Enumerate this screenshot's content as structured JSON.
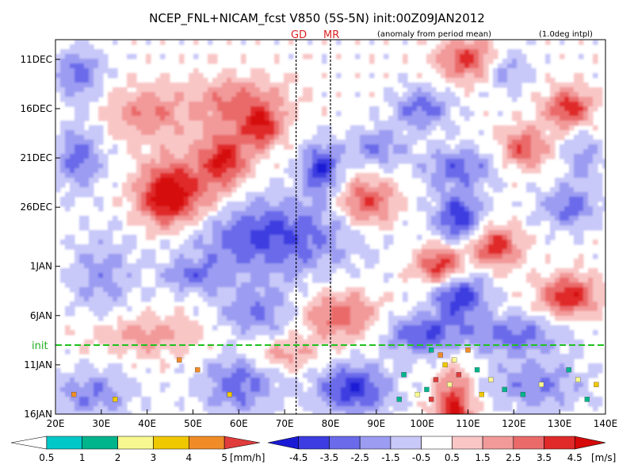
{
  "header": {
    "title": "NCEP_FNL+NICAM_fcst V850 (5S-5N) init:00Z09JAN2012",
    "note_anomaly": "(anomaly from period mean)",
    "note_interp": "(1.0deg intpl)",
    "marker_gd": "GD",
    "marker_mr": "MR",
    "init_label": "init"
  },
  "chart_data": {
    "type": "heatmap",
    "title": "NCEP_FNL+NICAM_fcst V850 (5S-5N) init:00Z09JAN2012",
    "x_ticks": [
      "20E",
      "30E",
      "40E",
      "50E",
      "60E",
      "70E",
      "80E",
      "90E",
      "100E",
      "110E",
      "120E",
      "130E",
      "140E"
    ],
    "xlim": [
      20,
      140
    ],
    "y_ticks": [
      "11DEC",
      "16DEC",
      "21DEC",
      "26DEC",
      "1JAN",
      "6JAN",
      "11JAN",
      "16JAN"
    ],
    "y_tick_days": [
      2,
      7,
      12,
      17,
      23,
      28,
      33,
      38
    ],
    "ylim_days": [
      0,
      38
    ],
    "init_day": 31,
    "markers": [
      {
        "label": "GD",
        "lon": 72.5
      },
      {
        "label": "MR",
        "lon": 80
      }
    ],
    "v850_colorbar": {
      "unit": "[m/s]",
      "labels": [
        "-4.5",
        "-3.5",
        "-2.5",
        "-1.5",
        "-0.5",
        "0.5",
        "1.5",
        "2.5",
        "3.5",
        "4.5"
      ],
      "colors": [
        "#1a1ad6",
        "#3c3ce0",
        "#6a6aea",
        "#9c9cf2",
        "#c8c8f9",
        "#ffffff",
        "#f9c6c6",
        "#f29a9a",
        "#ea6a6a",
        "#e02a2a",
        "#d60a0a"
      ]
    },
    "rain_colorbar": {
      "unit": "[mm/h]",
      "labels": [
        "0.5",
        "1",
        "2",
        "3",
        "4",
        "5"
      ],
      "colors": [
        "#ffffff",
        "#00c8c8",
        "#00b48c",
        "#f8f890",
        "#f0c800",
        "#f08c28",
        "#e03c3c"
      ]
    },
    "anomaly_blobs": [
      {
        "lon": 25,
        "day": 3.5,
        "rlon": 5,
        "rday": 2.5,
        "v": -3
      },
      {
        "lon": 40,
        "day": 7.5,
        "rlon": 8,
        "rday": 2.5,
        "v": 2.5
      },
      {
        "lon": 60,
        "day": 6.5,
        "rlon": 10,
        "rday": 2.5,
        "v": 3
      },
      {
        "lon": 65,
        "day": 9,
        "rlon": 4,
        "rday": 2,
        "v": 4
      },
      {
        "lon": 25,
        "day": 12,
        "rlon": 5,
        "rday": 3,
        "v": -3
      },
      {
        "lon": 57,
        "day": 12,
        "rlon": 5,
        "rday": 2.5,
        "v": 4.2
      },
      {
        "lon": 44,
        "day": 16,
        "rlon": 6,
        "rday": 3,
        "v": 4.5
      },
      {
        "lon": 50,
        "day": 15.5,
        "rlon": 9,
        "rday": 4,
        "v": 2.5
      },
      {
        "lon": 78,
        "day": 13,
        "rlon": 4,
        "rday": 2.5,
        "v": -4.2
      },
      {
        "lon": 90,
        "day": 11,
        "rlon": 6,
        "rday": 2,
        "v": -2.5
      },
      {
        "lon": 66,
        "day": 20,
        "rlon": 18,
        "rday": 4,
        "v": -3.8
      },
      {
        "lon": 88,
        "day": 16.5,
        "rlon": 6,
        "rday": 2.5,
        "v": 3.8
      },
      {
        "lon": 50,
        "day": 24,
        "rlon": 6,
        "rday": 1.5,
        "v": -2.5
      },
      {
        "lon": 30,
        "day": 24,
        "rlon": 7,
        "rday": 4,
        "v": -2
      },
      {
        "lon": 82,
        "day": 28,
        "rlon": 8,
        "rday": 2.5,
        "v": 3
      },
      {
        "lon": 64,
        "day": 27.5,
        "rlon": 8,
        "rday": 2.5,
        "v": -2.5
      },
      {
        "lon": 40,
        "day": 30,
        "rlon": 12,
        "rday": 2,
        "v": 2
      },
      {
        "lon": 70,
        "day": 32,
        "rlon": 7,
        "rday": 1.5,
        "v": 2
      },
      {
        "lon": 85,
        "day": 35.5,
        "rlon": 8,
        "rday": 2.5,
        "v": -4.2
      },
      {
        "lon": 60,
        "day": 35,
        "rlon": 8,
        "rday": 3,
        "v": -3
      },
      {
        "lon": 28,
        "day": 36,
        "rlon": 8,
        "rday": 2.5,
        "v": -2.5
      },
      {
        "lon": 107,
        "day": 38,
        "rlon": 4,
        "rday": 4,
        "v": 4.8
      },
      {
        "lon": 110,
        "day": 2,
        "rlon": 6,
        "rday": 2,
        "v": 4
      },
      {
        "lon": 118,
        "day": 3,
        "rlon": 5,
        "rday": 2,
        "v": -2
      },
      {
        "lon": 132,
        "day": 7,
        "rlon": 5,
        "rday": 2,
        "v": 4.2
      },
      {
        "lon": 100,
        "day": 7,
        "rlon": 6,
        "rday": 2,
        "v": -3
      },
      {
        "lon": 122,
        "day": 11,
        "rlon": 5,
        "rday": 2,
        "v": 3.5
      },
      {
        "lon": 108,
        "day": 13,
        "rlon": 8,
        "rday": 2,
        "v": -3
      },
      {
        "lon": 108,
        "day": 18,
        "rlon": 5,
        "rday": 2.5,
        "v": -4.2
      },
      {
        "lon": 132,
        "day": 17,
        "rlon": 6,
        "rday": 2,
        "v": -3
      },
      {
        "lon": 116,
        "day": 21,
        "rlon": 5,
        "rday": 2,
        "v": 4.2
      },
      {
        "lon": 104,
        "day": 23,
        "rlon": 5,
        "rday": 2,
        "v": 4.5
      },
      {
        "lon": 108,
        "day": 26,
        "rlon": 6,
        "rday": 2.5,
        "v": -4.2
      },
      {
        "lon": 132,
        "day": 26,
        "rlon": 6,
        "rday": 2,
        "v": 4.5
      },
      {
        "lon": 120,
        "day": 30,
        "rlon": 10,
        "rday": 2,
        "v": -3
      },
      {
        "lon": 100,
        "day": 30,
        "rlon": 8,
        "rday": 2,
        "v": -3.5
      },
      {
        "lon": 125,
        "day": 35,
        "rlon": 10,
        "rday": 2.5,
        "v": -2.5
      },
      {
        "lon": 135,
        "day": 12,
        "rlon": 4,
        "rday": 3,
        "v": -2
      }
    ],
    "rain_cells": [
      {
        "lon": 102,
        "day": 31.5,
        "v": 1
      },
      {
        "lon": 104,
        "day": 32,
        "v": 4
      },
      {
        "lon": 105,
        "day": 33,
        "v": 3
      },
      {
        "lon": 107,
        "day": 32.5,
        "v": 2
      },
      {
        "lon": 103,
        "day": 34.5,
        "v": 5
      },
      {
        "lon": 106,
        "day": 35,
        "v": 2
      },
      {
        "lon": 101,
        "day": 35.5,
        "v": 1
      },
      {
        "lon": 108,
        "day": 34,
        "v": 5
      },
      {
        "lon": 110,
        "day": 31.5,
        "v": 4
      },
      {
        "lon": 112,
        "day": 33.5,
        "v": 1
      },
      {
        "lon": 115,
        "day": 34.5,
        "v": 2
      },
      {
        "lon": 118,
        "day": 35.5,
        "v": 1
      },
      {
        "lon": 122,
        "day": 36,
        "v": 1
      },
      {
        "lon": 126,
        "day": 35,
        "v": 2
      },
      {
        "lon": 132,
        "day": 33.5,
        "v": 1
      },
      {
        "lon": 134,
        "day": 34.5,
        "v": 2
      },
      {
        "lon": 136,
        "day": 36.5,
        "v": 1
      },
      {
        "lon": 138,
        "day": 35,
        "v": 3
      },
      {
        "lon": 96,
        "day": 34,
        "v": 1
      },
      {
        "lon": 99,
        "day": 36,
        "v": 2
      },
      {
        "lon": 95,
        "day": 36.5,
        "v": 1
      },
      {
        "lon": 47,
        "day": 32.5,
        "v": 4
      },
      {
        "lon": 51,
        "day": 33.5,
        "v": 4
      },
      {
        "lon": 24,
        "day": 36,
        "v": 4
      },
      {
        "lon": 33,
        "day": 36.5,
        "v": 3
      },
      {
        "lon": 58,
        "day": 36,
        "v": 3
      },
      {
        "lon": 102,
        "day": 36.5,
        "v": 5
      },
      {
        "lon": 113,
        "day": 36,
        "v": 3
      }
    ]
  }
}
